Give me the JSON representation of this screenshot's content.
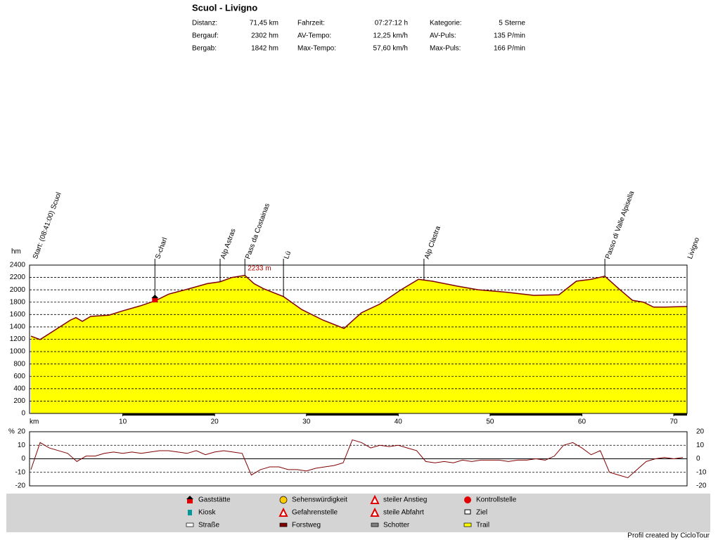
{
  "header": {
    "title": "Scuol - Livigno",
    "stats": [
      [
        [
          "Distanz:",
          "71,45 km"
        ],
        [
          "Fahrzeit:",
          "07:27:12 h"
        ],
        [
          "Kategorie:",
          "5 Sterne"
        ]
      ],
      [
        [
          "Bergauf:",
          "2302 hm"
        ],
        [
          "AV-Tempo:",
          "12,25 km/h"
        ],
        [
          "AV-Puls:",
          "135 P/min"
        ]
      ],
      [
        [
          "Bergab:",
          "1842 hm"
        ],
        [
          "Max-Tempo:",
          "57,60 km/h"
        ],
        [
          "Max-Puls:",
          "166 P/min"
        ]
      ]
    ]
  },
  "chart_data": [
    {
      "type": "area",
      "y_label": "hm",
      "x_label": "km",
      "color": "#ffff00",
      "line_color": "#800000",
      "x": [
        0,
        1,
        4.3,
        4.9,
        5.6,
        6.5,
        8.5,
        10,
        11.9,
        13.5,
        15,
        17.3,
        19.2,
        20.6,
        21.9,
        23.3,
        24.3,
        25.3,
        27.5,
        29.5,
        31.8,
        34.1,
        36,
        38,
        40.3,
        42.2,
        43.7,
        46.4,
        48.7,
        51.8,
        54.8,
        57.5,
        59.4,
        61,
        62.5,
        64,
        65.5,
        66.7,
        67.8,
        69,
        71.45
      ],
      "values": [
        1250,
        1195,
        1510,
        1550,
        1490,
        1570,
        1590,
        1660,
        1740,
        1820,
        1930,
        2020,
        2100,
        2130,
        2200,
        2233,
        2100,
        2020,
        1890,
        1680,
        1510,
        1375,
        1630,
        1770,
        2000,
        2170,
        2140,
        2060,
        2000,
        1960,
        1910,
        1920,
        2140,
        2170,
        2220,
        2020,
        1830,
        1800,
        1720,
        1720,
        1730
      ],
      "xlim": [
        0,
        71.45
      ],
      "xticks": [
        10,
        20,
        30,
        40,
        50,
        60,
        70
      ],
      "ylim": [
        0,
        2400
      ],
      "yticks": [
        0,
        200,
        400,
        600,
        800,
        1000,
        1200,
        1400,
        1600,
        1800,
        2000,
        2200,
        2400
      ],
      "grid": true,
      "waypoints": [
        {
          "x": 0,
          "label": "Start: (08:41:00) Scuol"
        },
        {
          "x": 13.5,
          "label": "S-charl"
        },
        {
          "x": 20.6,
          "label": "Alp Astras"
        },
        {
          "x": 23.3,
          "label": "Pass da Costainas"
        },
        {
          "x": 27.5,
          "label": "Lü"
        },
        {
          "x": 42.8,
          "label": "Alp Clastra"
        },
        {
          "x": 62.5,
          "label": "Passo di Valle Alpisella"
        },
        {
          "x": 71.45,
          "label": "Livigno"
        }
      ],
      "peak": {
        "x": 23.3,
        "value": 2233,
        "label": "2233 m"
      }
    },
    {
      "type": "line",
      "y_label": "%",
      "color": "#800000",
      "x": [
        0,
        1,
        2,
        3,
        4,
        5,
        6,
        7,
        8,
        9,
        10,
        11,
        12,
        13,
        14,
        15,
        16,
        17,
        18,
        19,
        20,
        21,
        22,
        23,
        24,
        25,
        26,
        27,
        28,
        29,
        30,
        31,
        32,
        33,
        34,
        35,
        36,
        37,
        38,
        39,
        40,
        41,
        42,
        43,
        44,
        45,
        46,
        47,
        48,
        49,
        50,
        51,
        52,
        53,
        54,
        55,
        56,
        57,
        58,
        59,
        60,
        61,
        62,
        63,
        64,
        65,
        66,
        67,
        68,
        69,
        70,
        71
      ],
      "values": [
        -8,
        12,
        8,
        6,
        4,
        -2,
        2,
        2,
        4,
        5,
        4,
        5,
        4,
        5,
        6,
        6,
        5,
        4,
        6,
        3,
        5,
        6,
        5,
        4,
        -12,
        -8,
        -6,
        -6,
        -8,
        -8,
        -9,
        -7,
        -6,
        -5,
        -3,
        14,
        12,
        8,
        10,
        9,
        10,
        8,
        6,
        -2,
        -3,
        -2,
        -3,
        -1,
        -2,
        -1,
        -1,
        -1,
        -2,
        -1,
        -1,
        0,
        -1,
        2,
        10,
        12,
        8,
        3,
        6,
        -10,
        -12,
        -14,
        -8,
        -2,
        0,
        1,
        0,
        1
      ],
      "xlim": [
        0,
        71.45
      ],
      "ylim": [
        -20,
        20
      ],
      "yticks": [
        -20,
        -10,
        0,
        10,
        20
      ],
      "grid": true
    }
  ],
  "legend": [
    [
      "Gaststätte",
      "Kiosk",
      "Straße"
    ],
    [
      "Sehenswürdigkeit",
      "Gefahrenstelle",
      "Forstweg"
    ],
    [
      "steiler Anstieg",
      "steile Abfahrt",
      "Schotter"
    ],
    [
      "Kontrollstelle",
      "Ziel",
      "Trail"
    ]
  ],
  "footer": "Profil created by CicloTour"
}
